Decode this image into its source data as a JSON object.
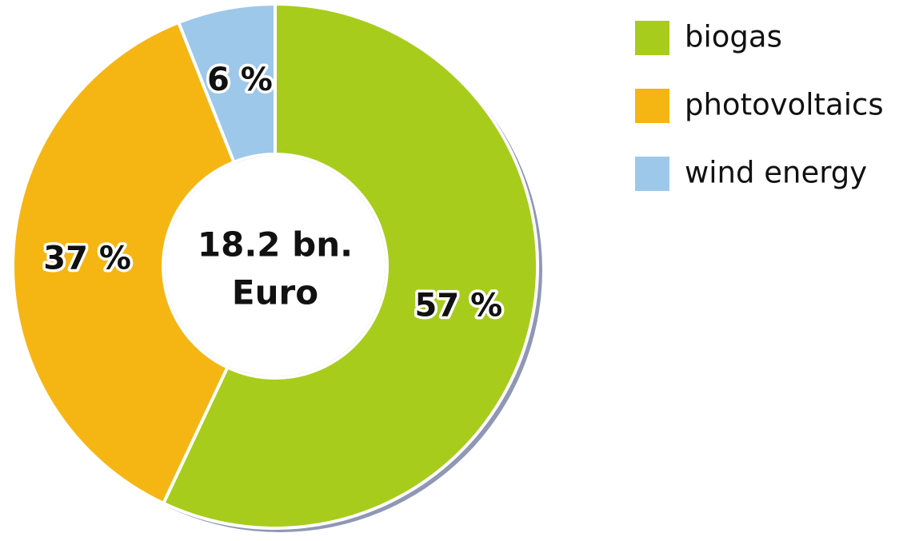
{
  "chart_data": {
    "type": "donut",
    "center_label": [
      "18.2 bn.",
      "Euro"
    ],
    "categories": [
      "biogas",
      "photovoltaics",
      "wind energy"
    ],
    "values": [
      57,
      37,
      6
    ],
    "value_labels": [
      "57 %",
      "37 %",
      "6 %"
    ],
    "colors": [
      "#a8cc1c",
      "#f5b614",
      "#9ec8ea"
    ],
    "legend": "top-right"
  }
}
